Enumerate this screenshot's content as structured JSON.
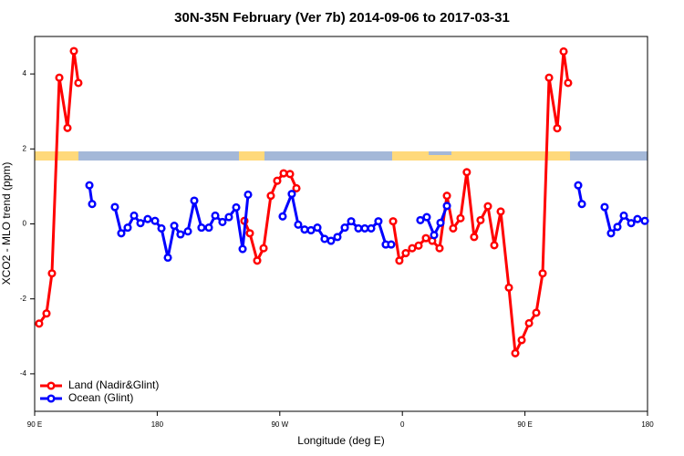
{
  "chart_data": {
    "type": "line",
    "title": "30N-35N February (Ver 7b)   2014-09-06 to 2017-03-31",
    "x_label": "Longitude (deg E)",
    "y_label": "XCO2 - MLO trend (ppm)",
    "xlim": [
      90,
      540
    ],
    "ylim": [
      -5,
      5
    ],
    "xticks": [
      {
        "value": 90,
        "label": "90 E"
      },
      180,
      {
        "value": 270,
        "label": "90 W"
      },
      {
        "value": 360,
        "label": "0"
      },
      {
        "value": 450,
        "label": "90 E"
      },
      {
        "value": 540,
        "label": "180"
      }
    ],
    "yticks": [
      -4,
      -2,
      0,
      2,
      4
    ],
    "legend": "bottom-left",
    "series": [
      {
        "name": "Land (Nadir&Glint)",
        "color": "#ff0000",
        "x": [
          93.3,
          98.7,
          102.7,
          108.1,
          114.1,
          118.8,
          122.1,
          null,
          244.0,
          248.0,
          253.4,
          258.1,
          263.4,
          268.1,
          272.8,
          277.5,
          282.2,
          null,
          353.2,
          357.8,
          362.5,
          367.2,
          371.9,
          377.3,
          381.9,
          387.3,
          392.7,
          397.3,
          402.7,
          407.3,
          412.7,
          417.4,
          422.8,
          427.5,
          432.2,
          438.2,
          442.9,
          447.6,
          453.0,
          458.3,
          463.0,
          467.7,
          473.7,
          478.4,
          481.7
        ],
        "values": [
          -2.66,
          -2.39,
          -1.32,
          3.9,
          2.56,
          4.61,
          3.76,
          null,
          0.08,
          -0.25,
          -0.98,
          -0.65,
          0.75,
          1.15,
          1.35,
          1.33,
          0.95,
          null,
          0.07,
          -0.98,
          -0.78,
          -0.65,
          -0.58,
          -0.38,
          -0.45,
          -0.65,
          0.75,
          -0.12,
          0.15,
          1.38,
          -0.35,
          0.1,
          0.47,
          -0.57,
          0.33,
          -1.7,
          -3.45,
          -3.1,
          -2.65,
          -2.37,
          -1.32,
          3.9,
          2.55,
          4.6,
          3.76
        ]
      },
      {
        "name": "Ocean (Glint)",
        "color": "#0000ff",
        "x": [
          130.2,
          132.2,
          null,
          148.9,
          153.6,
          158.3,
          163.0,
          167.7,
          173.0,
          178.4,
          183.1,
          187.8,
          192.5,
          197.1,
          202.5,
          207.2,
          212.5,
          217.9,
          222.6,
          227.9,
          232.6,
          238.0,
          242.7,
          246.7,
          null,
          272.1,
          278.8,
          283.5,
          288.2,
          292.9,
          297.6,
          302.9,
          307.6,
          312.3,
          317.7,
          322.4,
          327.7,
          332.4,
          337.1,
          342.4,
          347.8,
          351.8,
          null,
          373.2,
          377.9,
          383.3,
          388.0,
          392.7,
          null,
          489.1,
          491.8,
          null,
          508.5,
          513.2,
          517.9,
          522.6,
          528.0,
          532.6,
          538.0
        ],
        "values": [
          1.03,
          0.53,
          null,
          0.45,
          -0.25,
          -0.1,
          0.22,
          0.02,
          0.13,
          0.08,
          -0.12,
          -0.9,
          -0.05,
          -0.28,
          -0.2,
          0.62,
          -0.1,
          -0.1,
          0.22,
          0.05,
          0.18,
          0.44,
          -0.67,
          0.78,
          null,
          0.2,
          0.8,
          -0.02,
          -0.15,
          -0.17,
          -0.1,
          -0.4,
          -0.45,
          -0.35,
          -0.1,
          0.07,
          -0.12,
          -0.12,
          -0.12,
          0.07,
          -0.55,
          -0.55,
          null,
          0.1,
          0.18,
          -0.3,
          0.03,
          0.48,
          null,
          1.03,
          0.53,
          null,
          0.45,
          -0.25,
          -0.08,
          0.22,
          0.02,
          0.13,
          0.08
        ]
      }
    ]
  }
}
